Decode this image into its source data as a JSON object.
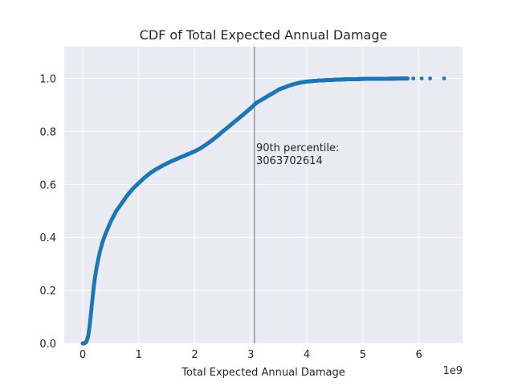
{
  "chart_data": {
    "type": "scatter",
    "title": "CDF of Total Expected Annual Damage",
    "xlabel": "Total Expected Annual Damage",
    "ylabel": "",
    "x_scale_label": "1e9",
    "x_scale": 1000000000,
    "xlim": [
      -0.33,
      6.78
    ],
    "ylim": [
      0.0,
      1.12
    ],
    "xticks": [
      0,
      1,
      2,
      3,
      4,
      5,
      6
    ],
    "xtick_labels": [
      "0",
      "1",
      "2",
      "3",
      "4",
      "5",
      "6"
    ],
    "yticks": [
      0.0,
      0.2,
      0.4,
      0.6,
      0.8,
      1.0
    ],
    "ytick_labels": [
      "0.0",
      "0.2",
      "0.4",
      "0.6",
      "0.8",
      "1.0"
    ],
    "grid": true,
    "legend": "none",
    "colors": {
      "points": "#1f77b4",
      "background": "#eaeaf2",
      "grid": "#ffffff",
      "vline": "#999999"
    },
    "series": [
      {
        "x": [
          0.0,
          0.03,
          0.06,
          0.08,
          0.1,
          0.12,
          0.14,
          0.16,
          0.18,
          0.2,
          0.22,
          0.25,
          0.3,
          0.35,
          0.4,
          0.5,
          0.6,
          0.7,
          0.8,
          0.9,
          1.0,
          1.1,
          1.2,
          1.3,
          1.4,
          1.5,
          1.6,
          1.7,
          1.8,
          1.9,
          2.0,
          2.1,
          2.2,
          2.3,
          2.4,
          2.5,
          2.6,
          2.7,
          2.8,
          2.9,
          3.0,
          3.06,
          3.1,
          3.2,
          3.3,
          3.4,
          3.5,
          3.6,
          3.7,
          3.8,
          3.9,
          4.0,
          4.2,
          4.4,
          4.6,
          4.8,
          5.0,
          5.2,
          5.4,
          5.6,
          5.7,
          5.8,
          5.9,
          6.05,
          6.2,
          6.45
        ],
        "y": [
          0.0,
          0.0,
          0.005,
          0.015,
          0.03,
          0.06,
          0.1,
          0.14,
          0.18,
          0.22,
          0.25,
          0.29,
          0.34,
          0.38,
          0.41,
          0.46,
          0.5,
          0.53,
          0.56,
          0.585,
          0.605,
          0.625,
          0.642,
          0.656,
          0.668,
          0.679,
          0.689,
          0.698,
          0.707,
          0.716,
          0.725,
          0.736,
          0.75,
          0.765,
          0.782,
          0.8,
          0.817,
          0.835,
          0.852,
          0.87,
          0.888,
          0.9,
          0.908,
          0.92,
          0.933,
          0.945,
          0.958,
          0.966,
          0.974,
          0.98,
          0.985,
          0.988,
          0.992,
          0.994,
          0.996,
          0.997,
          0.998,
          0.9985,
          0.999,
          0.9993,
          0.9995,
          0.9996,
          0.9997,
          0.9998,
          0.9999,
          1.0
        ]
      }
    ],
    "vline": {
      "x": 3.063702614,
      "annotation": [
        "90th percentile:",
        "3063702614"
      ]
    }
  }
}
